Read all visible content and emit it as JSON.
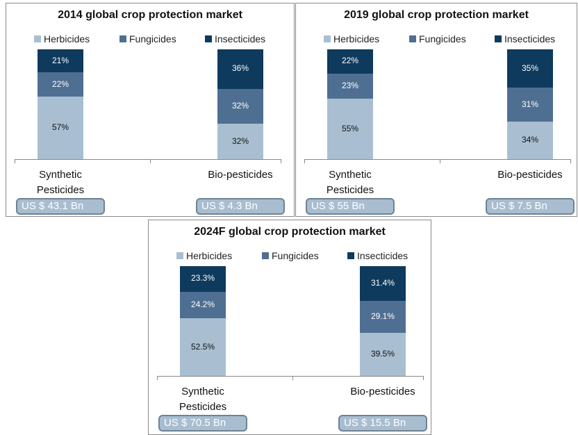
{
  "chart_data": [
    {
      "type": "bar",
      "stacked": true,
      "title": "2014 global crop protection market",
      "categories": [
        "Synthetic Pesticides",
        "Bio-pesticides"
      ],
      "series": [
        {
          "name": "Herbicides",
          "color": "#a9bfd1",
          "values": [
            57,
            32
          ],
          "value_labels": [
            "57%",
            "32%"
          ]
        },
        {
          "name": "Fungicides",
          "color": "#4f6f92",
          "values": [
            22,
            32
          ],
          "value_labels": [
            "22%",
            "32%"
          ]
        },
        {
          "name": "Insecticides",
          "color": "#0e3a5e",
          "values": [
            21,
            36
          ],
          "value_labels": [
            "21%",
            "36%"
          ]
        }
      ],
      "annotations": [
        "US $ 43.1 Bn",
        "US $ 4.3 Bn"
      ],
      "ylim": [
        0,
        100
      ],
      "legend": "top"
    },
    {
      "type": "bar",
      "stacked": true,
      "title": "2019 global crop protection market",
      "categories": [
        "Synthetic Pesticides",
        "Bio-pesticides"
      ],
      "series": [
        {
          "name": "Herbicides",
          "color": "#a9bfd1",
          "values": [
            55,
            34
          ],
          "value_labels": [
            "55%",
            "34%"
          ]
        },
        {
          "name": "Fungicides",
          "color": "#4f6f92",
          "values": [
            23,
            31
          ],
          "value_labels": [
            "23%",
            "31%"
          ]
        },
        {
          "name": "Insecticides",
          "color": "#0e3a5e",
          "values": [
            22,
            35
          ],
          "value_labels": [
            "22%",
            "35%"
          ]
        }
      ],
      "annotations": [
        "US $ 55 Bn",
        "US $ 7.5 Bn"
      ],
      "ylim": [
        0,
        100
      ],
      "legend": "top"
    },
    {
      "type": "bar",
      "stacked": true,
      "title": "2024F global crop protection market",
      "categories": [
        "Synthetic Pesticides",
        "Bio-pesticides"
      ],
      "series": [
        {
          "name": "Herbicides",
          "color": "#a9bfd1",
          "values": [
            52.5,
            39.5
          ],
          "value_labels": [
            "52.5%",
            "39.5%"
          ]
        },
        {
          "name": "Fungicides",
          "color": "#4f6f92",
          "values": [
            24.2,
            29.1
          ],
          "value_labels": [
            "24.2%",
            "29.1%"
          ]
        },
        {
          "name": "Insecticides",
          "color": "#0e3a5e",
          "values": [
            23.3,
            31.4
          ],
          "value_labels": [
            "23.3%",
            "31.4%"
          ]
        }
      ],
      "annotations": [
        "US $ 70.5 Bn",
        "US $ 15.5 Bn"
      ],
      "ylim": [
        0,
        100
      ],
      "legend": "top"
    }
  ]
}
